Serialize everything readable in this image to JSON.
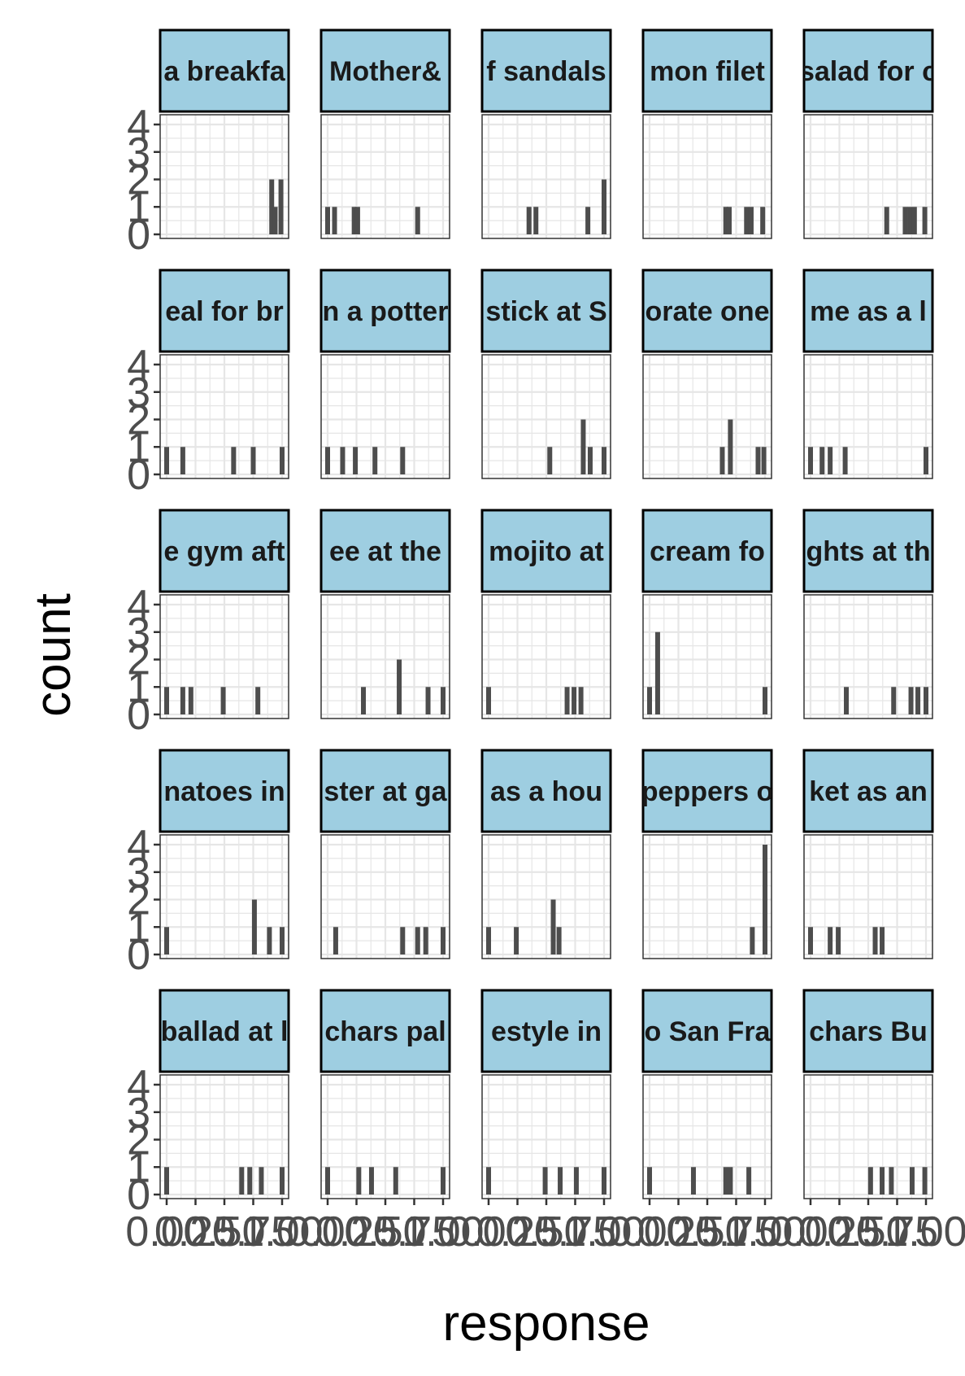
{
  "chart_data": {
    "type": "bar",
    "subtype": "faceted-histogram",
    "xlabel": "response",
    "ylabel": "count",
    "xlim": [
      0,
      1
    ],
    "ylim": [
      0,
      4
    ],
    "x_ticks": [
      "0.00",
      "0.25",
      "0.50",
      "0.75",
      "1.00"
    ],
    "y_ticks": [
      "0",
      "1",
      "2",
      "3",
      "4"
    ],
    "grid": true,
    "panels": [
      {
        "label": "a breakfa",
        "bars": [
          {
            "x": 0.91,
            "count": 2
          },
          {
            "x": 0.94,
            "count": 1
          },
          {
            "x": 0.99,
            "count": 2
          }
        ]
      },
      {
        "label": "Mother&",
        "bars": [
          {
            "x": 0.0,
            "count": 1
          },
          {
            "x": 0.06,
            "count": 1
          },
          {
            "x": 0.23,
            "count": 1
          },
          {
            "x": 0.26,
            "count": 1
          },
          {
            "x": 0.78,
            "count": 1
          }
        ]
      },
      {
        "label": "f sandals",
        "bars": [
          {
            "x": 0.35,
            "count": 1
          },
          {
            "x": 0.41,
            "count": 1
          },
          {
            "x": 0.86,
            "count": 1
          },
          {
            "x": 1.0,
            "count": 2
          }
        ]
      },
      {
        "label": "mon filet",
        "bars": [
          {
            "x": 0.66,
            "count": 1
          },
          {
            "x": 0.69,
            "count": 1
          },
          {
            "x": 0.84,
            "count": 1
          },
          {
            "x": 0.88,
            "count": 1
          },
          {
            "x": 0.98,
            "count": 1
          }
        ]
      },
      {
        "label": "salad for c",
        "bars": [
          {
            "x": 0.66,
            "count": 1
          },
          {
            "x": 0.82,
            "count": 1
          },
          {
            "x": 0.86,
            "count": 1
          },
          {
            "x": 0.9,
            "count": 1
          },
          {
            "x": 0.99,
            "count": 1
          }
        ]
      },
      {
        "label": "eal for br",
        "bars": [
          {
            "x": 0.0,
            "count": 1
          },
          {
            "x": 0.14,
            "count": 1
          },
          {
            "x": 0.58,
            "count": 1
          },
          {
            "x": 0.75,
            "count": 1
          },
          {
            "x": 1.0,
            "count": 1
          }
        ]
      },
      {
        "label": "n a potter",
        "bars": [
          {
            "x": 0.0,
            "count": 1
          },
          {
            "x": 0.13,
            "count": 1
          },
          {
            "x": 0.24,
            "count": 1
          },
          {
            "x": 0.41,
            "count": 1
          },
          {
            "x": 0.65,
            "count": 1
          }
        ]
      },
      {
        "label": "stick at S",
        "bars": [
          {
            "x": 0.53,
            "count": 1
          },
          {
            "x": 0.82,
            "count": 2
          },
          {
            "x": 0.88,
            "count": 1
          },
          {
            "x": 1.0,
            "count": 1
          }
        ]
      },
      {
        "label": "orate one",
        "bars": [
          {
            "x": 0.63,
            "count": 1
          },
          {
            "x": 0.7,
            "count": 2
          },
          {
            "x": 0.94,
            "count": 1
          },
          {
            "x": 0.99,
            "count": 1
          }
        ]
      },
      {
        "label": "me as a l",
        "bars": [
          {
            "x": 0.0,
            "count": 1
          },
          {
            "x": 0.1,
            "count": 1
          },
          {
            "x": 0.17,
            "count": 1
          },
          {
            "x": 0.3,
            "count": 1
          },
          {
            "x": 1.0,
            "count": 1
          }
        ]
      },
      {
        "label": "e gym aft",
        "bars": [
          {
            "x": 0.0,
            "count": 1
          },
          {
            "x": 0.14,
            "count": 1
          },
          {
            "x": 0.21,
            "count": 1
          },
          {
            "x": 0.49,
            "count": 1
          },
          {
            "x": 0.79,
            "count": 1
          }
        ]
      },
      {
        "label": "ee at the",
        "bars": [
          {
            "x": 0.31,
            "count": 1
          },
          {
            "x": 0.62,
            "count": 2
          },
          {
            "x": 0.87,
            "count": 1
          },
          {
            "x": 1.0,
            "count": 1
          }
        ]
      },
      {
        "label": "mojito at",
        "bars": [
          {
            "x": 0.0,
            "count": 1
          },
          {
            "x": 0.68,
            "count": 1
          },
          {
            "x": 0.74,
            "count": 1
          },
          {
            "x": 0.8,
            "count": 1
          }
        ]
      },
      {
        "label": "cream fo",
        "bars": [
          {
            "x": 0.0,
            "count": 1
          },
          {
            "x": 0.07,
            "count": 3
          },
          {
            "x": 1.0,
            "count": 1
          }
        ]
      },
      {
        "label": "ghts at th",
        "bars": [
          {
            "x": 0.31,
            "count": 1
          },
          {
            "x": 0.72,
            "count": 1
          },
          {
            "x": 0.87,
            "count": 1
          },
          {
            "x": 0.93,
            "count": 1
          },
          {
            "x": 1.0,
            "count": 1
          }
        ]
      },
      {
        "label": "natoes in",
        "bars": [
          {
            "x": 0.0,
            "count": 1
          },
          {
            "x": 0.76,
            "count": 2
          },
          {
            "x": 0.89,
            "count": 1
          },
          {
            "x": 1.0,
            "count": 1
          }
        ]
      },
      {
        "label": "ster at ga",
        "bars": [
          {
            "x": 0.07,
            "count": 1
          },
          {
            "x": 0.65,
            "count": 1
          },
          {
            "x": 0.78,
            "count": 1
          },
          {
            "x": 0.85,
            "count": 1
          },
          {
            "x": 1.0,
            "count": 1
          }
        ]
      },
      {
        "label": "as a hou",
        "bars": [
          {
            "x": 0.0,
            "count": 1
          },
          {
            "x": 0.24,
            "count": 1
          },
          {
            "x": 0.56,
            "count": 2
          },
          {
            "x": 0.61,
            "count": 1
          }
        ]
      },
      {
        "label": "peppers o",
        "bars": [
          {
            "x": 0.89,
            "count": 1
          },
          {
            "x": 1.0,
            "count": 4
          }
        ]
      },
      {
        "label": "ket as an",
        "bars": [
          {
            "x": 0.0,
            "count": 1
          },
          {
            "x": 0.17,
            "count": 1
          },
          {
            "x": 0.24,
            "count": 1
          },
          {
            "x": 0.56,
            "count": 1
          },
          {
            "x": 0.62,
            "count": 1
          }
        ]
      },
      {
        "label": "ballad at l",
        "bars": [
          {
            "x": 0.0,
            "count": 1
          },
          {
            "x": 0.65,
            "count": 1
          },
          {
            "x": 0.72,
            "count": 1
          },
          {
            "x": 0.82,
            "count": 1
          },
          {
            "x": 1.0,
            "count": 1
          }
        ]
      },
      {
        "label": "chars pal",
        "bars": [
          {
            "x": 0.0,
            "count": 1
          },
          {
            "x": 0.27,
            "count": 1
          },
          {
            "x": 0.38,
            "count": 1
          },
          {
            "x": 0.59,
            "count": 1
          },
          {
            "x": 1.0,
            "count": 1
          }
        ]
      },
      {
        "label": "estyle in",
        "bars": [
          {
            "x": 0.0,
            "count": 1
          },
          {
            "x": 0.49,
            "count": 1
          },
          {
            "x": 0.62,
            "count": 1
          },
          {
            "x": 0.76,
            "count": 1
          },
          {
            "x": 1.0,
            "count": 1
          }
        ]
      },
      {
        "label": "o San Fra",
        "bars": [
          {
            "x": 0.0,
            "count": 1
          },
          {
            "x": 0.38,
            "count": 1
          },
          {
            "x": 0.66,
            "count": 1
          },
          {
            "x": 0.7,
            "count": 1
          },
          {
            "x": 0.86,
            "count": 1
          }
        ]
      },
      {
        "label": "chars Bu",
        "bars": [
          {
            "x": 0.52,
            "count": 1
          },
          {
            "x": 0.62,
            "count": 1
          },
          {
            "x": 0.7,
            "count": 1
          },
          {
            "x": 0.88,
            "count": 1
          },
          {
            "x": 0.99,
            "count": 1
          }
        ]
      }
    ]
  },
  "colors": {
    "strip_fill": "#9ecee1",
    "strip_border": "#000000",
    "bar_fill": "#4d4d4d",
    "grid_line": "#e6e6e6",
    "panel_border": "#333333",
    "axis_text": "#4d4d4d"
  }
}
